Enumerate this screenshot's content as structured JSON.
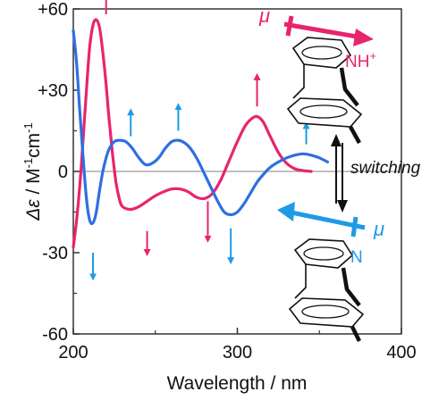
{
  "colors": {
    "protonated": "#e8246e",
    "neutral": "#2f6fe0",
    "marker_blue": "#1e9be6",
    "axis": "#333333",
    "zero_line": "#9a9a9a",
    "molecule": "#111111"
  },
  "chart_data": {
    "type": "line",
    "xlabel": "Wavelength / nm",
    "ylabel_symbol": "Δε",
    "ylabel_unit": " / M",
    "ylabel_exp1": "-1",
    "ylabel_mid": "cm",
    "ylabel_exp2": "-1",
    "xlim": [
      200,
      400
    ],
    "ylim": [
      -60,
      60
    ],
    "x_ticks": [
      {
        "value": 200,
        "label": "200"
      },
      {
        "value": 300,
        "label": "300"
      },
      {
        "value": 400,
        "label": "400"
      }
    ],
    "y_ticks": [
      {
        "value": 60,
        "label": "+60"
      },
      {
        "value": 30,
        "label": "+30"
      },
      {
        "value": 0,
        "label": "0"
      },
      {
        "value": -30,
        "label": "-30"
      },
      {
        "value": -60,
        "label": "-60"
      }
    ],
    "grid": false,
    "zero_line": true,
    "series": [
      {
        "id": "protonated",
        "color": "#e8246e",
        "points": [
          [
            200,
            -28
          ],
          [
            202,
            -18
          ],
          [
            204,
            -5
          ],
          [
            206,
            12
          ],
          [
            208,
            30
          ],
          [
            210,
            46
          ],
          [
            212,
            54
          ],
          [
            214,
            56
          ],
          [
            216,
            53
          ],
          [
            218,
            44
          ],
          [
            220,
            32
          ],
          [
            222,
            18
          ],
          [
            224,
            6
          ],
          [
            226,
            -4
          ],
          [
            228,
            -10
          ],
          [
            230,
            -13
          ],
          [
            235,
            -14
          ],
          [
            240,
            -13
          ],
          [
            245,
            -11
          ],
          [
            250,
            -9
          ],
          [
            255,
            -7.5
          ],
          [
            260,
            -6.5
          ],
          [
            265,
            -6.5
          ],
          [
            270,
            -7.5
          ],
          [
            275,
            -9.5
          ],
          [
            280,
            -10
          ],
          [
            285,
            -8
          ],
          [
            290,
            -3
          ],
          [
            295,
            4
          ],
          [
            300,
            11
          ],
          [
            305,
            17
          ],
          [
            310,
            20
          ],
          [
            313,
            20
          ],
          [
            316,
            18
          ],
          [
            320,
            13
          ],
          [
            325,
            7
          ],
          [
            330,
            3
          ],
          [
            335,
            1
          ],
          [
            340,
            0.3
          ],
          [
            345,
            0
          ]
        ]
      },
      {
        "id": "neutral",
        "color": "#2f6fe0",
        "points": [
          [
            200,
            52
          ],
          [
            202,
            40
          ],
          [
            204,
            22
          ],
          [
            206,
            5
          ],
          [
            208,
            -10
          ],
          [
            210,
            -18
          ],
          [
            212,
            -19
          ],
          [
            214,
            -15
          ],
          [
            216,
            -7
          ],
          [
            218,
            0
          ],
          [
            220,
            5
          ],
          [
            222,
            8.5
          ],
          [
            225,
            11
          ],
          [
            228,
            11.5
          ],
          [
            232,
            11
          ],
          [
            236,
            8.5
          ],
          [
            240,
            5
          ],
          [
            244,
            2.5
          ],
          [
            248,
            3
          ],
          [
            252,
            5
          ],
          [
            256,
            8.5
          ],
          [
            260,
            11
          ],
          [
            264,
            11.5
          ],
          [
            268,
            10.5
          ],
          [
            272,
            8
          ],
          [
            276,
            4
          ],
          [
            280,
            -1
          ],
          [
            284,
            -6
          ],
          [
            288,
            -11
          ],
          [
            292,
            -15
          ],
          [
            296,
            -16
          ],
          [
            300,
            -15
          ],
          [
            304,
            -12
          ],
          [
            308,
            -8
          ],
          [
            312,
            -4
          ],
          [
            316,
            -1
          ],
          [
            320,
            1.5
          ],
          [
            325,
            3.5
          ],
          [
            330,
            5
          ],
          [
            335,
            6
          ],
          [
            340,
            6.5
          ],
          [
            345,
            6
          ],
          [
            350,
            5
          ],
          [
            355,
            3.5
          ]
        ]
      }
    ],
    "change_arrows": [
      {
        "series": "protonated",
        "x": 220,
        "y0": 58,
        "y1": 66,
        "color": "#e8246e"
      },
      {
        "series": "protonated",
        "x": 245,
        "y0": -22,
        "y1": -30,
        "color": "#e8246e"
      },
      {
        "series": "protonated",
        "x": 282,
        "y0": -11,
        "y1": -25,
        "color": "#e8246e"
      },
      {
        "series": "protonated",
        "x": 312,
        "y0": 24,
        "y1": 35,
        "color": "#e8246e"
      },
      {
        "series": "neutral",
        "x": 212,
        "y0": -30,
        "y1": -39,
        "color": "#1e9be6"
      },
      {
        "series": "neutral",
        "x": 235,
        "y0": 13,
        "y1": 22,
        "color": "#1e9be6"
      },
      {
        "series": "neutral",
        "x": 264,
        "y0": 15,
        "y1": 24,
        "color": "#1e9be6"
      },
      {
        "series": "neutral",
        "x": 296,
        "y0": -21,
        "y1": -33,
        "color": "#1e9be6"
      },
      {
        "series": "neutral",
        "x": 342,
        "y0": 10,
        "y1": 17,
        "color": "#1e9be6"
      }
    ]
  },
  "annotations": {
    "mu_top": "μ",
    "mu_bottom": "μ",
    "nh_label": "NH",
    "nh_charge": "+",
    "n_label": "N",
    "switching_label": "switching"
  }
}
